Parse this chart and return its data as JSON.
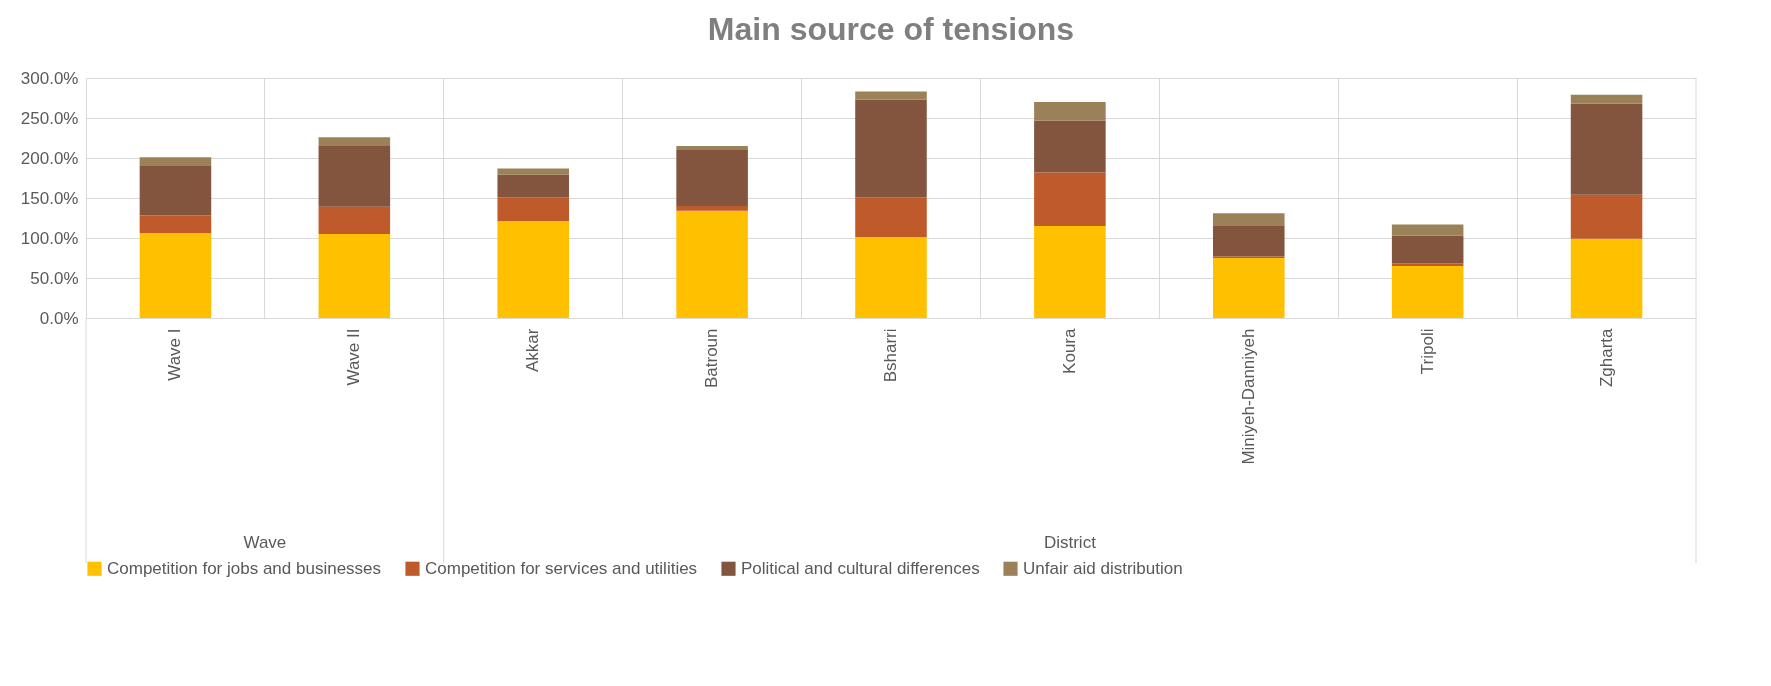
{
  "chart_data": {
    "type": "bar",
    "title": "Main source of tensions",
    "stacked": true,
    "grid": true,
    "legend": "bottom",
    "categories": [
      "Wave I",
      "Wave II",
      "Akkar",
      "Batroun",
      "Bsharri",
      "Koura",
      "Miniyeh-Danniyeh",
      "Tripoli",
      "Zgharta"
    ],
    "series": [
      {
        "name": "Competition for jobs and businesses",
        "color": "#ffc000",
        "values": [
          106,
          105,
          121,
          134,
          101,
          115,
          75,
          65,
          99
        ]
      },
      {
        "name": "Competition for services and utilities",
        "color": "#bf5a2a",
        "values": [
          22,
          34,
          30,
          6,
          50,
          67,
          2,
          3,
          55
        ]
      },
      {
        "name": "Political and cultural differences",
        "color": "#84553e",
        "values": [
          63,
          76,
          28,
          70,
          122,
          65,
          39,
          35,
          114
        ]
      },
      {
        "name": "Unfair aid distribution",
        "color": "#9b8158",
        "values": [
          10,
          11,
          8,
          5,
          10,
          23,
          15,
          14,
          11
        ]
      }
    ],
    "ylim": [
      0,
      300
    ],
    "yticks": [
      {
        "value": 0,
        "label": "0.0%"
      },
      {
        "value": 50,
        "label": "50.0%"
      },
      {
        "value": 100,
        "label": "100.0%"
      },
      {
        "value": 150,
        "label": "150.0%"
      },
      {
        "value": 200,
        "label": "200.0%"
      },
      {
        "value": 250,
        "label": "250.0%"
      },
      {
        "value": 300,
        "label": "300.0%"
      }
    ],
    "annotations": [
      "Wave",
      "District"
    ]
  }
}
